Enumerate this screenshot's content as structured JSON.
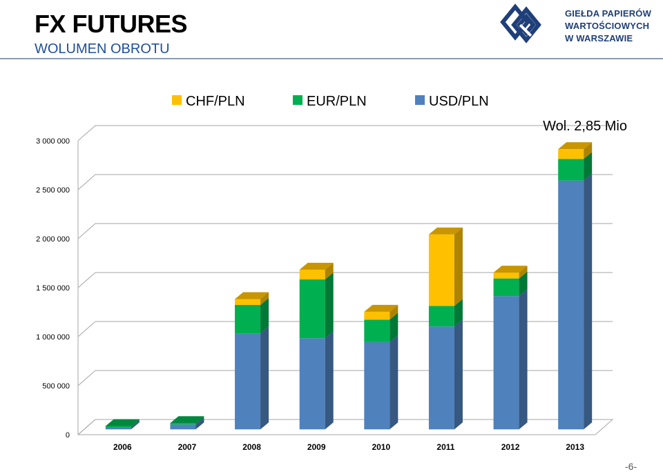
{
  "header": {
    "title": "FX FUTURES",
    "subtitle": "WOLUMEN OBROTU",
    "logo_lines": [
      "GIEŁDA PAPIERÓW",
      "WARTOŚCIOWYCH",
      "W WARSZAWIE"
    ]
  },
  "page_number": "-6-",
  "chart_data": {
    "type": "bar",
    "stacked": true,
    "style": "3d",
    "categories": [
      "2006",
      "2007",
      "2008",
      "2009",
      "2010",
      "2011",
      "2012",
      "2013"
    ],
    "series": [
      {
        "name": "USD/PLN",
        "color": "#4f81bd",
        "values": [
          20000,
          50000,
          980000,
          930000,
          890000,
          1050000,
          1360000,
          2540000
        ]
      },
      {
        "name": "EUR/PLN",
        "color": "#00b050",
        "values": [
          10000,
          10000,
          290000,
          600000,
          230000,
          210000,
          180000,
          220000
        ]
      },
      {
        "name": "CHF/PLN",
        "color": "#ffc000",
        "values": [
          0,
          0,
          60000,
          100000,
          80000,
          730000,
          60000,
          100000
        ]
      }
    ],
    "legend_order": [
      "CHF/PLN",
      "EUR/PLN",
      "USD/PLN"
    ],
    "legend_position": "top",
    "y_ticks": [
      "0",
      "500 000",
      "1 000 000",
      "1 500 000",
      "2 000 000",
      "2 500 000",
      "3 000 000"
    ],
    "ylim": [
      0,
      3000000
    ],
    "grid": true,
    "annotation": "Wol. 2,85 Mio"
  }
}
